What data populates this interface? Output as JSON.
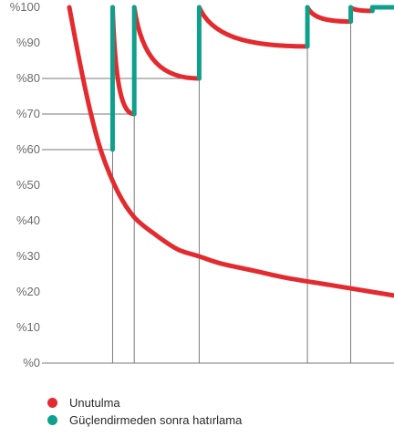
{
  "chart_data": {
    "type": "line",
    "title": "",
    "xlabel": "",
    "ylabel": "",
    "ylim": [
      0,
      100
    ],
    "y_ticks": [
      "%0",
      "%10",
      "%20",
      "%30",
      "%40",
      "%50",
      "%60",
      "%70",
      "%80",
      "%90",
      "%100"
    ],
    "colors": {
      "forgetting": "#e32b2f",
      "recall": "#0fa08c",
      "grid": "#7a7a7a"
    },
    "forgetting_curve": {
      "name": "Unutulma",
      "points": [
        [
          0,
          100
        ],
        [
          1,
          84
        ],
        [
          2,
          70
        ],
        [
          3,
          59
        ],
        [
          4.5,
          48
        ],
        [
          6,
          41
        ],
        [
          8,
          36
        ],
        [
          10,
          32
        ],
        [
          12,
          30
        ],
        [
          14,
          28
        ],
        [
          17,
          26
        ],
        [
          20,
          24
        ],
        [
          24,
          22
        ],
        [
          28,
          20
        ],
        [
          30,
          19
        ]
      ]
    },
    "review_cycles": [
      {
        "start_x": 4,
        "end_x": 6,
        "start_y": 100,
        "end_y": 70,
        "recall_from": 60
      },
      {
        "start_x": 6,
        "end_x": 12,
        "start_y": 100,
        "end_y": 80,
        "recall_from": 70
      },
      {
        "start_x": 12,
        "end_x": 22,
        "start_y": 100,
        "end_y": 89,
        "recall_from": 80
      },
      {
        "start_x": 22,
        "end_x": 26,
        "start_y": 100,
        "end_y": 96,
        "recall_from": 89
      },
      {
        "start_x": 26,
        "end_x": 28,
        "start_y": 100,
        "end_y": 99,
        "recall_from": 96
      }
    ],
    "review_times": [
      4,
      6,
      12,
      22,
      26
    ],
    "reference_levels": [
      {
        "y": 80,
        "x_end": 12
      },
      {
        "y": 70,
        "x_end": 6
      },
      {
        "y": 60,
        "x_end": 4
      }
    ],
    "legend": [
      {
        "label": "Unutulma",
        "color": "#e32b2f"
      },
      {
        "label": "Güçlendirmeden sonra hatırlama",
        "color": "#0fa08c"
      }
    ]
  }
}
